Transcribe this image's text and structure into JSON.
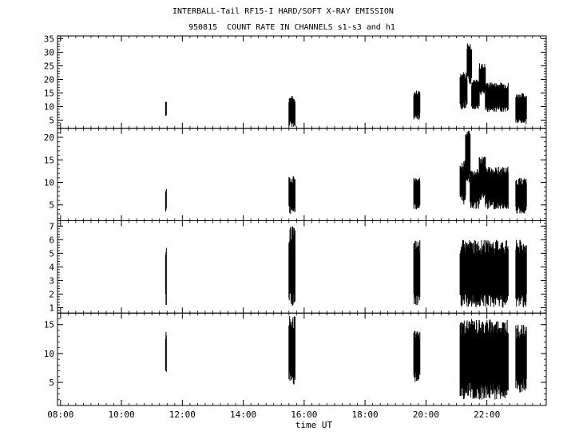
{
  "title_line1": "INTERBALL-Tail RF15-I HARD/SOFT X-RAY EMISSION",
  "title_line2": "950815  COUNT RATE IN CHANNELS s1-s3 and h1",
  "chart_data": {
    "type": "line",
    "xlabel": "time UT",
    "xlim": [
      7.9,
      23.95
    ],
    "x_ticks": [
      {
        "value": 8,
        "label": "08:00"
      },
      {
        "value": 10,
        "label": "10:00"
      },
      {
        "value": 12,
        "label": "12:00"
      },
      {
        "value": 14,
        "label": "14:00"
      },
      {
        "value": 16,
        "label": "16:00"
      },
      {
        "value": 18,
        "label": "18:00"
      },
      {
        "value": 20,
        "label": "20:00"
      },
      {
        "value": 22,
        "label": "22:00"
      }
    ],
    "grid": false,
    "panels": [
      {
        "ylim": [
          2,
          36
        ],
        "yticks": [
          5,
          10,
          15,
          20,
          25,
          30,
          35
        ],
        "ytick_labels": [
          "5",
          "10",
          "15",
          "20",
          "25",
          "30",
          "35"
        ],
        "segments": [
          {
            "start": 11.45,
            "end": 11.46,
            "min": 6,
            "max": 12.5
          },
          {
            "start": 15.5,
            "end": 15.7,
            "min": 2.5,
            "max": 14
          },
          {
            "start": 19.6,
            "end": 19.8,
            "min": 5,
            "max": 16
          },
          {
            "start": 21.12,
            "end": 21.35,
            "min": 9,
            "max": 23
          },
          {
            "start": 21.35,
            "end": 21.5,
            "min": 18,
            "max": 34
          },
          {
            "start": 21.5,
            "end": 21.75,
            "min": 9,
            "max": 20
          },
          {
            "start": 21.75,
            "end": 21.95,
            "min": 14,
            "max": 26
          },
          {
            "start": 21.95,
            "end": 22.7,
            "min": 8,
            "max": 19
          },
          {
            "start": 22.95,
            "end": 23.3,
            "min": 3.5,
            "max": 15
          }
        ]
      },
      {
        "ylim": [
          1.5,
          22
        ],
        "yticks": [
          5,
          10,
          15,
          20
        ],
        "ytick_labels": [
          "5",
          "10",
          "15",
          "20"
        ],
        "segments": [
          {
            "start": 11.45,
            "end": 11.46,
            "min": 3.5,
            "max": 9
          },
          {
            "start": 15.5,
            "end": 15.7,
            "min": 3,
            "max": 11.5
          },
          {
            "start": 19.6,
            "end": 19.8,
            "min": 4,
            "max": 11
          },
          {
            "start": 21.12,
            "end": 21.3,
            "min": 5,
            "max": 15
          },
          {
            "start": 21.3,
            "end": 21.45,
            "min": 10,
            "max": 21.5
          },
          {
            "start": 21.45,
            "end": 21.75,
            "min": 4,
            "max": 13
          },
          {
            "start": 21.75,
            "end": 21.95,
            "min": 6,
            "max": 16
          },
          {
            "start": 21.95,
            "end": 22.7,
            "min": 4,
            "max": 13.5
          },
          {
            "start": 22.95,
            "end": 23.3,
            "min": 3,
            "max": 11
          }
        ]
      },
      {
        "ylim": [
          0.6,
          7.4
        ],
        "yticks": [
          1,
          2,
          3,
          4,
          5,
          6,
          7
        ],
        "ytick_labels": [
          "1",
          "2",
          "3",
          "4",
          "5",
          "6",
          "7"
        ],
        "segments": [
          {
            "start": 11.45,
            "end": 11.46,
            "min": 1,
            "max": 5.5
          },
          {
            "start": 15.5,
            "end": 15.7,
            "min": 1,
            "max": 7
          },
          {
            "start": 19.6,
            "end": 19.8,
            "min": 1,
            "max": 6
          },
          {
            "start": 21.12,
            "end": 22.7,
            "min": 1,
            "max": 6
          },
          {
            "start": 22.95,
            "end": 23.3,
            "min": 1,
            "max": 6
          }
        ]
      },
      {
        "ylim": [
          1,
          17
        ],
        "yticks": [
          5,
          10,
          15
        ],
        "ytick_labels": [
          "5",
          "10",
          "15"
        ],
        "segments": [
          {
            "start": 11.45,
            "end": 11.46,
            "min": 6.5,
            "max": 14
          },
          {
            "start": 15.5,
            "end": 15.7,
            "min": 4,
            "max": 16.5
          },
          {
            "start": 19.6,
            "end": 19.8,
            "min": 5,
            "max": 14
          },
          {
            "start": 21.12,
            "end": 22.7,
            "min": 2,
            "max": 16
          },
          {
            "start": 22.95,
            "end": 23.3,
            "min": 3,
            "max": 15
          }
        ]
      }
    ]
  }
}
